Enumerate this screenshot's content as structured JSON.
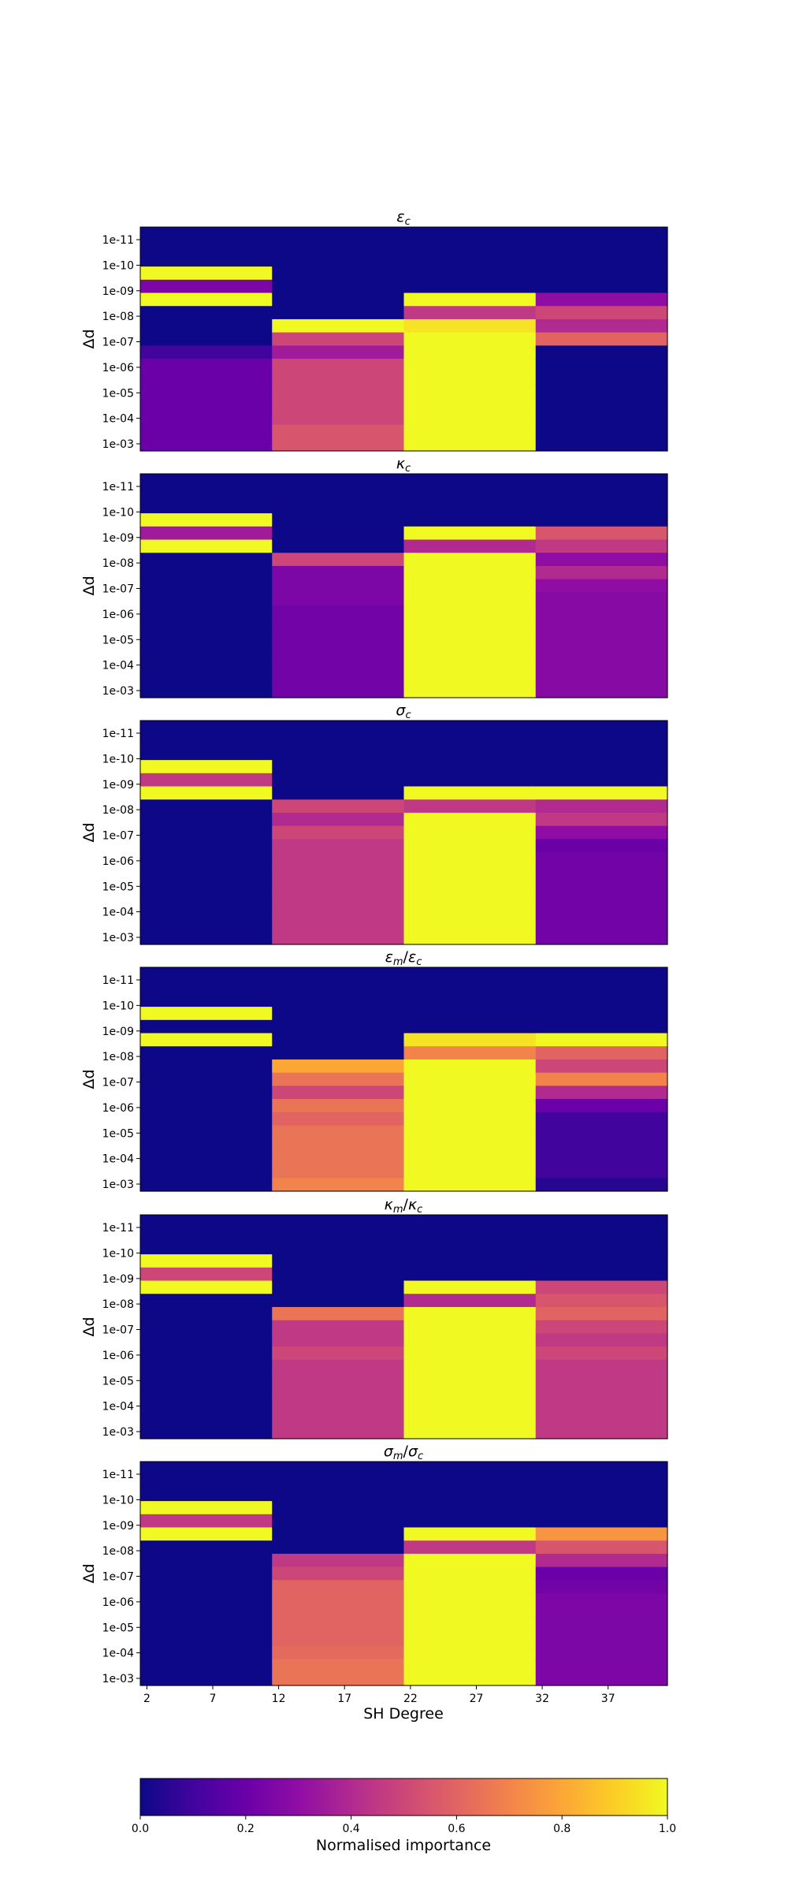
{
  "chart_data": {
    "type": "heatmap",
    "colormap": "plasma",
    "x": {
      "label": "SH Degree",
      "column_ranges": [
        "2-11",
        "12-21",
        "22-31",
        "32-41"
      ],
      "tick_values": [
        "2",
        "7",
        "12",
        "17",
        "22",
        "27",
        "32",
        "37"
      ]
    },
    "y": {
      "label": "Δd",
      "categories": [
        "1e-11",
        "1e-10",
        "1e-09",
        "1e-08",
        "1e-07",
        "1e-06",
        "1e-05",
        "1e-04",
        "1e-03"
      ],
      "ticks": [
        "1e-11",
        "1e-10",
        "1e-09",
        "1e-08",
        "1e-07",
        "1e-06",
        "1e-05",
        "1e-04",
        "1e-03"
      ]
    },
    "colorbar": {
      "label": "Normalised importance",
      "range": [
        0,
        1
      ],
      "ticks": [
        "0.0",
        "0.2",
        "0.4",
        "0.6",
        "0.8",
        "1.0"
      ]
    },
    "panels": [
      {
        "title_main": "ε",
        "title_sub": "c",
        "columns": [
          [
            0.0,
            0.0,
            0.0,
            1.0,
            0.25,
            1.0,
            0.0,
            0.0,
            0.0,
            0.1,
            0.2,
            0.2,
            0.2,
            0.2,
            0.2,
            0.2,
            0.2
          ],
          [
            0.0,
            0.0,
            0.0,
            0.0,
            0.0,
            0.0,
            0.0,
            1.0,
            0.5,
            0.35,
            0.5,
            0.5,
            0.5,
            0.5,
            0.5,
            0.55,
            0.55
          ],
          [
            0.0,
            0.0,
            0.0,
            0.0,
            0.0,
            1.0,
            0.45,
            0.95,
            1.0,
            1.0,
            1.0,
            1.0,
            1.0,
            1.0,
            1.0,
            1.0,
            1.0
          ],
          [
            0.0,
            0.0,
            0.0,
            0.0,
            0.0,
            0.3,
            0.5,
            0.4,
            0.6,
            0.0,
            0.0,
            0.0,
            0.0,
            0.0,
            0.0,
            0.0,
            0.0
          ]
        ]
      },
      {
        "title_main": "κ",
        "title_sub": "c",
        "columns": [
          [
            0.0,
            0.0,
            0.0,
            1.0,
            0.35,
            1.0,
            0.0,
            0.0,
            0.0,
            0.0,
            0.0,
            0.0,
            0.0,
            0.0,
            0.0,
            0.0,
            0.0
          ],
          [
            0.0,
            0.0,
            0.0,
            0.0,
            0.0,
            0.0,
            0.5,
            0.25,
            0.25,
            0.25,
            0.22,
            0.22,
            0.22,
            0.22,
            0.22,
            0.22,
            0.22
          ],
          [
            0.0,
            0.0,
            0.0,
            0.0,
            1.0,
            0.4,
            1.0,
            1.0,
            1.0,
            1.0,
            1.0,
            1.0,
            1.0,
            1.0,
            1.0,
            1.0,
            1.0
          ],
          [
            0.0,
            0.0,
            0.0,
            0.0,
            0.55,
            0.45,
            0.3,
            0.4,
            0.3,
            0.28,
            0.28,
            0.28,
            0.28,
            0.28,
            0.28,
            0.28,
            0.28
          ]
        ]
      },
      {
        "title_main": "σ",
        "title_sub": "c",
        "columns": [
          [
            0.0,
            0.0,
            0.0,
            1.0,
            0.45,
            1.0,
            0.0,
            0.0,
            0.0,
            0.0,
            0.0,
            0.0,
            0.0,
            0.0,
            0.0,
            0.0,
            0.0
          ],
          [
            0.0,
            0.0,
            0.0,
            0.0,
            0.0,
            0.0,
            0.5,
            0.4,
            0.5,
            0.45,
            0.45,
            0.45,
            0.45,
            0.45,
            0.45,
            0.45,
            0.45
          ],
          [
            0.0,
            0.0,
            0.0,
            0.0,
            0.0,
            1.0,
            0.45,
            1.0,
            1.0,
            1.0,
            1.0,
            1.0,
            1.0,
            1.0,
            1.0,
            1.0,
            1.0
          ],
          [
            0.0,
            0.0,
            0.0,
            0.0,
            0.0,
            1.0,
            0.4,
            0.45,
            0.3,
            0.2,
            0.22,
            0.22,
            0.22,
            0.22,
            0.22,
            0.22,
            0.22
          ]
        ]
      },
      {
        "title_main": "ε",
        "title_sub": "m",
        "title_main2": "ε",
        "title_sub2": "c",
        "columns": [
          [
            0.0,
            0.0,
            0.0,
            1.0,
            0.0,
            1.0,
            0.0,
            0.0,
            0.0,
            0.0,
            0.0,
            0.0,
            0.0,
            0.0,
            0.0,
            0.0,
            0.0
          ],
          [
            0.0,
            0.0,
            0.0,
            0.0,
            0.0,
            0.0,
            0.0,
            0.8,
            0.65,
            0.5,
            0.65,
            0.6,
            0.65,
            0.65,
            0.65,
            0.65,
            0.7
          ],
          [
            0.0,
            0.0,
            0.0,
            0.0,
            0.0,
            0.95,
            0.7,
            1.0,
            1.0,
            1.0,
            1.0,
            1.0,
            1.0,
            1.0,
            1.0,
            1.0,
            1.0
          ],
          [
            0.0,
            0.0,
            0.0,
            0.0,
            0.0,
            1.0,
            0.6,
            0.5,
            0.7,
            0.4,
            0.2,
            0.1,
            0.1,
            0.1,
            0.1,
            0.1,
            0.05
          ]
        ]
      },
      {
        "title_main": "κ",
        "title_sub": "m",
        "title_main2": "κ",
        "title_sub2": "c",
        "columns": [
          [
            0.0,
            0.0,
            0.0,
            1.0,
            0.5,
            1.0,
            0.0,
            0.0,
            0.0,
            0.0,
            0.0,
            0.0,
            0.0,
            0.0,
            0.0,
            0.0,
            0.0
          ],
          [
            0.0,
            0.0,
            0.0,
            0.0,
            0.0,
            0.0,
            0.0,
            0.65,
            0.45,
            0.45,
            0.5,
            0.45,
            0.45,
            0.45,
            0.45,
            0.45,
            0.45
          ],
          [
            0.0,
            0.0,
            0.0,
            0.0,
            0.0,
            1.0,
            0.4,
            1.0,
            1.0,
            1.0,
            1.0,
            1.0,
            1.0,
            1.0,
            1.0,
            1.0,
            1.0
          ],
          [
            0.0,
            0.0,
            0.0,
            0.0,
            0.0,
            0.5,
            0.55,
            0.6,
            0.5,
            0.45,
            0.5,
            0.45,
            0.45,
            0.45,
            0.45,
            0.45,
            0.45
          ]
        ]
      },
      {
        "title_main": "σ",
        "title_sub": "m",
        "title_main2": "σ",
        "title_sub2": "c",
        "columns": [
          [
            0.0,
            0.0,
            0.0,
            1.0,
            0.45,
            1.0,
            0.0,
            0.0,
            0.0,
            0.0,
            0.0,
            0.0,
            0.0,
            0.0,
            0.0,
            0.0,
            0.0
          ],
          [
            0.0,
            0.0,
            0.0,
            0.0,
            0.0,
            0.0,
            0.0,
            0.45,
            0.5,
            0.6,
            0.6,
            0.6,
            0.6,
            0.6,
            0.62,
            0.65,
            0.65
          ],
          [
            0.0,
            0.0,
            0.0,
            0.0,
            0.0,
            1.0,
            0.45,
            1.0,
            1.0,
            1.0,
            1.0,
            1.0,
            1.0,
            1.0,
            1.0,
            1.0,
            1.0
          ],
          [
            0.0,
            0.0,
            0.0,
            0.0,
            0.0,
            0.75,
            0.55,
            0.4,
            0.2,
            0.22,
            0.25,
            0.25,
            0.25,
            0.25,
            0.25,
            0.25,
            0.25
          ]
        ]
      }
    ]
  }
}
